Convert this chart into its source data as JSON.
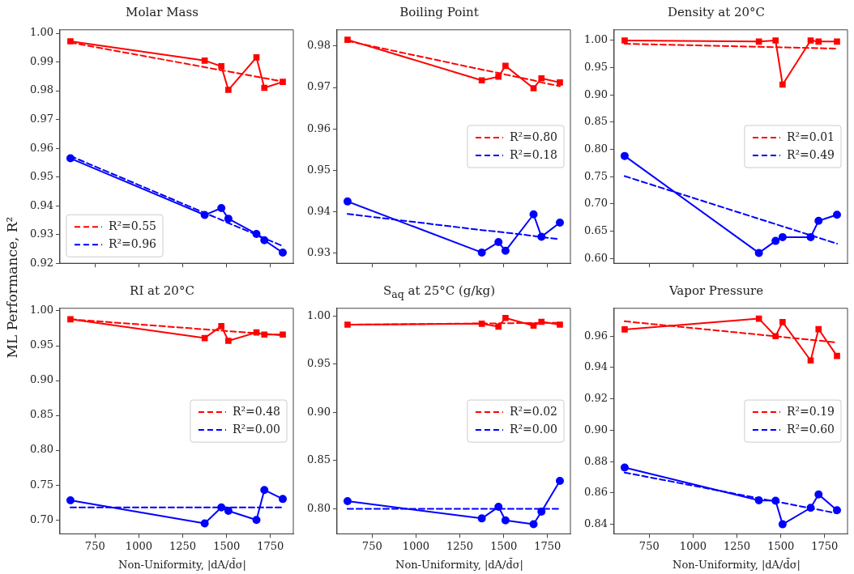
{
  "chart_data": [
    {
      "type": "line",
      "title": "Molar Mass",
      "ylabel": "ML Performance, R²",
      "x": [
        610,
        1375,
        1470,
        1510,
        1670,
        1715,
        1820
      ],
      "xlim": [
        550,
        1880
      ],
      "xticks": [
        750,
        1000,
        1250,
        1500,
        1750
      ],
      "ylim": [
        0.92,
        1.0012
      ],
      "yticks": [
        0.92,
        0.93,
        0.94,
        0.95,
        0.96,
        0.97,
        0.98,
        0.99,
        {
          "value": 1,
          "label": "1.00"
        }
      ],
      "tick_labels": "y",
      "legend": "bottom left",
      "series": [
        {
          "color": "#ff0000",
          "marker": "square",
          "values": [
            0.9972,
            0.9905,
            0.9885,
            0.9803,
            0.9916,
            0.981,
            0.9831
          ]
        },
        {
          "color": "#0000ff",
          "marker": "circle",
          "values": [
            0.9565,
            0.9368,
            0.9392,
            0.9355,
            0.9302,
            0.928,
            0.9237
          ]
        },
        {
          "name": "R²=0.55",
          "color": "#ff0000",
          "line_style": "dashed",
          "values": [
            0.9968,
            0.9882,
            0.9871,
            0.9867,
            0.9849,
            0.9844,
            0.9832
          ]
        },
        {
          "name": "R²=0.96",
          "color": "#0000ff",
          "line_style": "dashed",
          "values": [
            0.9573,
            0.9375,
            0.9351,
            0.934,
            0.9299,
            0.9287,
            0.926
          ]
        }
      ]
    },
    {
      "type": "line",
      "title": "Boiling Point",
      "x": [
        610,
        1375,
        1470,
        1510,
        1670,
        1715,
        1820
      ],
      "xlim": [
        550,
        1880
      ],
      "xticks": [
        750,
        1000,
        1250,
        1500,
        1750
      ],
      "ylim": [
        0.9276,
        0.9839
      ],
      "yticks": [
        0.93,
        0.94,
        0.95,
        0.96,
        0.97,
        0.98
      ],
      "tick_labels": "y",
      "legend": "right",
      "series": [
        {
          "color": "#ff0000",
          "marker": "square",
          "values": [
            0.9815,
            0.9717,
            0.9726,
            0.9752,
            0.9698,
            0.9722,
            0.9712
          ]
        },
        {
          "color": "#0000ff",
          "marker": "circle",
          "values": [
            0.9425,
            0.9302,
            0.9327,
            0.9306,
            0.9394,
            0.934,
            0.9374
          ]
        },
        {
          "name": "R²=0.80",
          "color": "#ff0000",
          "line_style": "dashed",
          "values": [
            0.9812,
            0.9743,
            0.9735,
            0.9731,
            0.9717,
            0.9712,
            0.9703
          ]
        },
        {
          "name": "R²=0.18",
          "color": "#0000ff",
          "line_style": "dashed",
          "values": [
            0.9395,
            0.9356,
            0.9352,
            0.935,
            0.9342,
            0.9339,
            0.9334
          ]
        }
      ]
    },
    {
      "type": "line",
      "title": "Density at 20°C",
      "x": [
        610,
        1375,
        1470,
        1510,
        1670,
        1715,
        1820
      ],
      "xlim": [
        550,
        1880
      ],
      "xticks": [
        750,
        1000,
        1250,
        1500,
        1750
      ],
      "ylim": [
        0.591,
        1.0196
      ],
      "yticks": [
        {
          "value": 0.6,
          "label": "0.60"
        },
        0.65,
        {
          "value": 0.7,
          "label": "0.70"
        },
        0.75,
        {
          "value": 0.8,
          "label": "0.80"
        },
        0.85,
        {
          "value": 0.9,
          "label": "0.90"
        },
        0.95,
        {
          "value": 1,
          "label": "1.00"
        }
      ],
      "tick_labels": "y",
      "legend": "right",
      "series": [
        {
          "color": "#ff0000",
          "marker": "square",
          "values": [
            1.0,
            0.998,
            1.0,
            0.919,
            1.0,
            0.998,
            0.998
          ]
        },
        {
          "color": "#0000ff",
          "marker": "circle",
          "values": [
            0.788,
            0.61,
            0.632,
            0.639,
            0.639,
            0.669,
            0.68
          ]
        },
        {
          "name": "R²=0.01",
          "color": "#ff0000",
          "line_style": "dashed",
          "values": [
            0.994,
            0.9883,
            0.9876,
            0.9873,
            0.9861,
            0.9858,
            0.985
          ]
        },
        {
          "name": "R²=0.49",
          "color": "#0000ff",
          "line_style": "dashed",
          "values": [
            0.751,
            0.6726,
            0.6629,
            0.6588,
            0.6424,
            0.6378,
            0.627
          ]
        }
      ]
    },
    {
      "type": "line",
      "title": "RI at 20°C",
      "xlabel": "Non-Uniformity, |dA/d̄σ|",
      "x": [
        610,
        1375,
        1470,
        1510,
        1670,
        1715,
        1820
      ],
      "xlim": [
        550,
        1880
      ],
      "xticks": [
        750,
        1000,
        1250,
        1500,
        1750
      ],
      "ylim": [
        0.68,
        1.0037
      ],
      "yticks": [
        {
          "value": 0.7,
          "label": "0.70"
        },
        0.75,
        {
          "value": 0.8,
          "label": "0.80"
        },
        0.85,
        {
          "value": 0.9,
          "label": "0.90"
        },
        0.95,
        {
          "value": 1,
          "label": "1.00"
        }
      ],
      "legend": "right",
      "series": [
        {
          "color": "#ff0000",
          "marker": "square",
          "values": [
            0.988,
            0.961,
            0.978,
            0.957,
            0.969,
            0.966,
            0.966
          ]
        },
        {
          "color": "#0000ff",
          "marker": "circle",
          "values": [
            0.728,
            0.695,
            0.718,
            0.713,
            0.7,
            0.743,
            0.73
          ]
        },
        {
          "name": "R²=0.48",
          "color": "#ff0000",
          "line_style": "dashed",
          "values": [
            0.988,
            0.9735,
            0.9717,
            0.9709,
            0.9679,
            0.967,
            0.965
          ]
        },
        {
          "name": "R²=0.00",
          "color": "#0000ff",
          "line_style": "dashed",
          "values": [
            0.718,
            0.718,
            0.718,
            0.718,
            0.718,
            0.718,
            0.718
          ]
        }
      ]
    },
    {
      "type": "line",
      "title": "S$_{aq}$ at 25°C (g/kg)",
      "xlabel": "Non-Uniformity, |dA/d̄σ|",
      "x": [
        610,
        1375,
        1470,
        1510,
        1670,
        1715,
        1820
      ],
      "xlim": [
        550,
        1880
      ],
      "xticks": [
        750,
        1000,
        1250,
        1500,
        1750
      ],
      "ylim": [
        0.774,
        1.008
      ],
      "yticks": [
        {
          "value": 0.8,
          "label": "0.80"
        },
        0.85,
        {
          "value": 0.9,
          "label": "0.90"
        },
        0.95,
        {
          "value": 1,
          "label": "1.00"
        }
      ],
      "legend": "right",
      "series": [
        {
          "color": "#ff0000",
          "marker": "square",
          "values": [
            0.991,
            0.992,
            0.989,
            0.998,
            0.99,
            0.994,
            0.991
          ]
        },
        {
          "color": "#0000ff",
          "marker": "circle",
          "values": [
            0.808,
            0.79,
            0.802,
            0.788,
            0.784,
            0.797,
            0.829
          ]
        },
        {
          "name": "R²=0.02",
          "color": "#ff0000",
          "line_style": "dashed",
          "values": [
            0.991,
            0.9923,
            0.9924,
            0.9925,
            0.9928,
            0.9928,
            0.993
          ]
        },
        {
          "name": "R²=0.00",
          "color": "#0000ff",
          "line_style": "dashed",
          "values": [
            0.8,
            0.8,
            0.8,
            0.8,
            0.8,
            0.8,
            0.8
          ]
        }
      ]
    },
    {
      "type": "line",
      "title": "Vapor Pressure",
      "xlabel": "Non-Uniformity, |dA/d̄σ|",
      "x": [
        610,
        1375,
        1470,
        1510,
        1670,
        1715,
        1820
      ],
      "xlim": [
        550,
        1880
      ],
      "xticks": [
        750,
        1000,
        1250,
        1500,
        1750
      ],
      "ylim": [
        0.8339,
        0.9778
      ],
      "yticks": [
        0.84,
        0.86,
        0.88,
        {
          "value": 0.9,
          "label": "0.90"
        },
        0.92,
        0.94,
        0.96
      ],
      "legend": "right",
      "series": [
        {
          "color": "#ff0000",
          "marker": "square",
          "values": [
            0.9643,
            0.9712,
            0.96,
            0.969,
            0.9445,
            0.9645,
            0.9474
          ]
        },
        {
          "color": "#0000ff",
          "marker": "circle",
          "values": [
            0.8762,
            0.8553,
            0.855,
            0.84,
            0.8505,
            0.859,
            0.849
          ]
        },
        {
          "name": "R²=0.19",
          "color": "#ff0000",
          "line_style": "dashed",
          "values": [
            0.9695,
            0.961,
            0.9599,
            0.9595,
            0.9577,
            0.9572,
            0.956
          ]
        },
        {
          "name": "R²=0.60",
          "color": "#0000ff",
          "line_style": "dashed",
          "values": [
            0.873,
            0.8566,
            0.8545,
            0.8537,
            0.8502,
            0.8493,
            0.847
          ]
        }
      ]
    }
  ]
}
